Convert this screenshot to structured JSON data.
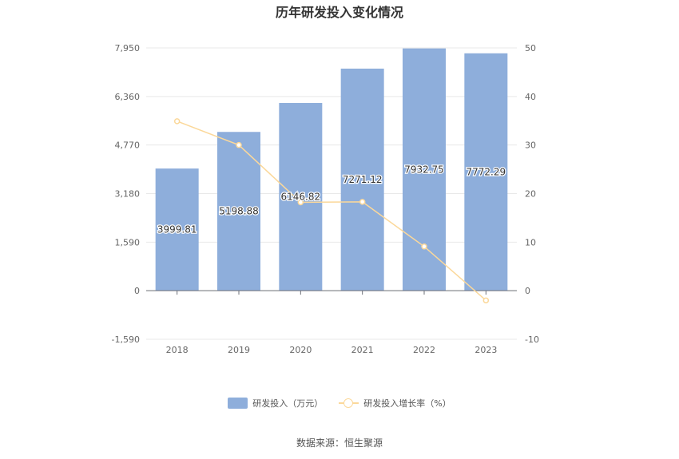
{
  "title": "历年研发投入变化情况",
  "source": "数据来源：恒生聚源",
  "colors": {
    "bar": "#8eaedb",
    "line": "#fbd89a",
    "grid": "#e8e8e8",
    "axis_text": "#666666"
  },
  "chart_data": {
    "type": "bar+line",
    "categories": [
      "2018",
      "2019",
      "2020",
      "2021",
      "2022",
      "2023"
    ],
    "series": [
      {
        "name": "研发投入（万元）",
        "type": "bar",
        "axis": "left",
        "values": [
          3999.81,
          5198.88,
          6146.82,
          7271.12,
          7932.75,
          7772.29
        ],
        "labels": [
          "3999.81",
          "5198.88",
          "6146.82",
          "7271.12",
          "7932.75",
          "7772.29"
        ]
      },
      {
        "name": "研发投入增长率（%）",
        "type": "line",
        "axis": "right",
        "values": [
          34.9,
          30.0,
          18.2,
          18.3,
          9.1,
          -2.0
        ]
      }
    ],
    "y_left": {
      "min": -1590,
      "max": 7950,
      "ticks": [
        -1590,
        0,
        1590,
        3180,
        4770,
        6360,
        7950
      ],
      "tick_labels": [
        "-1,590",
        "0",
        "1,590",
        "3,180",
        "4,770",
        "6,360",
        "7,950"
      ]
    },
    "y_right": {
      "min": -10,
      "max": 50,
      "ticks": [
        -10,
        0,
        10,
        20,
        30,
        40,
        50
      ],
      "tick_labels": [
        "-10",
        "0",
        "10",
        "20",
        "30",
        "40",
        "50"
      ]
    },
    "grid": true,
    "legend_position": "bottom"
  }
}
